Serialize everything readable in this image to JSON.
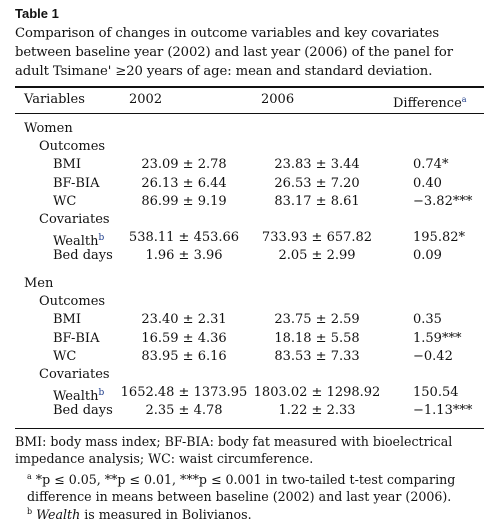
{
  "table": {
    "label": "Table 1",
    "caption": "Comparison of changes in outcome variables and key covariates between baseline year (2002) and last year (2006) of the panel for adult Tsimane' ≥20 years of age: mean and standard deviation.",
    "headers": {
      "variables": "Variables",
      "y2002": "2002",
      "y2006": "2006",
      "difference": "Difference",
      "difference_sup": "a"
    },
    "sections": {
      "women": {
        "label": "Women",
        "outcomes_label": "Outcomes",
        "covariates_label": "Covariates",
        "rows": [
          {
            "var": "BMI",
            "v2002": "23.09 ± 2.78",
            "v2006": "23.83 ± 3.44",
            "diff": "0.74*"
          },
          {
            "var": "BF-BIA",
            "v2002": "26.13 ± 6.44",
            "v2006": "26.53 ± 7.20",
            "diff": "0.40"
          },
          {
            "var": "WC",
            "v2002": "86.99 ± 9.19",
            "v2006": "83.17 ± 8.61",
            "diff": "−3.82***"
          },
          {
            "var": "Wealth",
            "var_sup": "b",
            "v2002": "538.11 ± 453.66",
            "v2006": "733.93 ± 657.82",
            "diff": "195.82*"
          },
          {
            "var": "Bed days",
            "v2002": "1.96 ± 3.96",
            "v2006": "2.05 ± 2.99",
            "diff": "0.09"
          }
        ]
      },
      "men": {
        "label": "Men",
        "outcomes_label": "Outcomes",
        "covariates_label": "Covariates",
        "rows": [
          {
            "var": "BMI",
            "v2002": "23.40 ± 2.31",
            "v2006": "23.75 ± 2.59",
            "diff": "0.35"
          },
          {
            "var": "BF-BIA",
            "v2002": "16.59 ± 4.36",
            "v2006": "18.18 ± 5.58",
            "diff": "1.59***"
          },
          {
            "var": "WC",
            "v2002": "83.95 ± 6.16",
            "v2006": "83.53 ± 7.33",
            "diff": "−0.42"
          },
          {
            "var": "Wealth",
            "var_sup": "b",
            "v2002": "1652.48 ± 1373.95",
            "v2006": "1803.02 ± 1298.92",
            "diff": "150.54"
          },
          {
            "var": "Bed days",
            "v2002": "2.35 ± 4.78",
            "v2006": "1.22 ± 2.33",
            "diff": "−1.13***"
          }
        ]
      }
    },
    "footnotes": {
      "abbrev": "BMI: body mass index; BF-BIA: body fat measured with bioelectrical impedance analysis; WC: waist circumference.",
      "note_a_marker": "a",
      "note_a_text": "*p ≤ 0.05, **p ≤ 0.01, ***p ≤ 0.001 in two-tailed t-test comparing difference in means between baseline (2002) and last year (2006).",
      "note_b_marker": "b",
      "note_b_italic": "Wealth",
      "note_b_text": " is measured in Bolivianos."
    }
  }
}
